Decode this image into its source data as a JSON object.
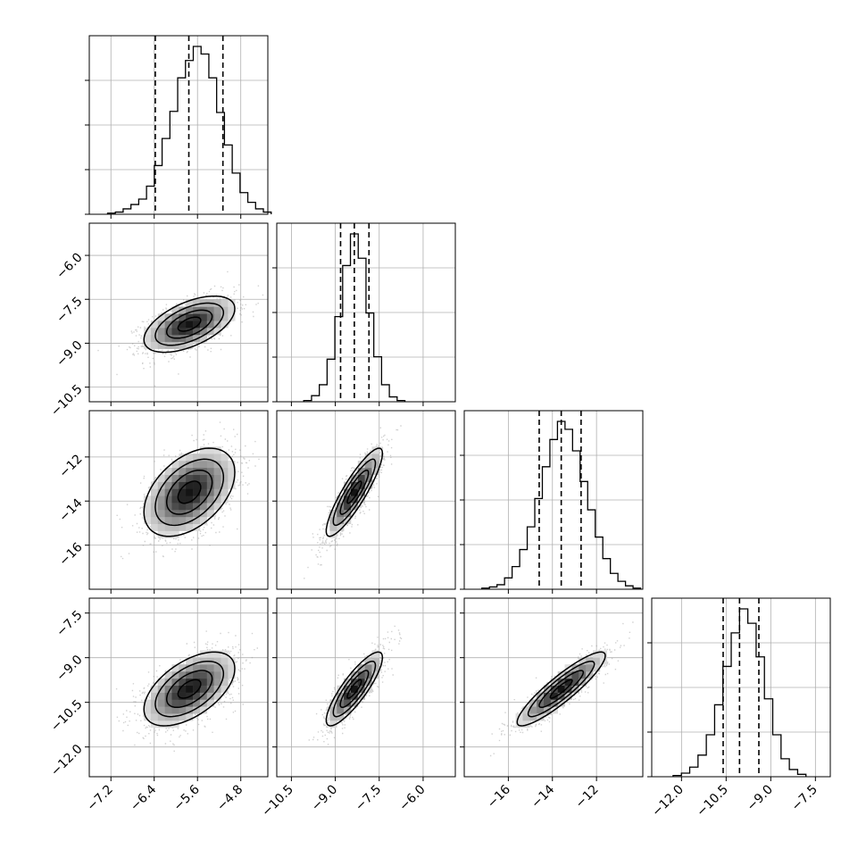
{
  "chart_data": {
    "type": "corner",
    "parameters": [
      {
        "range": [
          -7.6,
          -4.3
        ],
        "mean": -5.75,
        "sd": 0.42,
        "quantiles": [
          -6.38,
          -5.76,
          -5.13
        ],
        "ticks": [
          {
            "v": -7.2,
            "label": "−7.2"
          },
          {
            "v": -6.4,
            "label": "−6.4"
          },
          {
            "v": -5.6,
            "label": "−5.6"
          },
          {
            "v": -4.8,
            "label": "−4.8"
          }
        ]
      },
      {
        "range": [
          -11.0,
          -4.9
        ],
        "mean": -8.35,
        "sd": 0.48,
        "quantiles": [
          -8.82,
          -8.35,
          -7.85
        ],
        "ticks": [
          {
            "v": -10.5,
            "label": "−10.5"
          },
          {
            "v": -9.0,
            "label": "−9.0"
          },
          {
            "v": -7.5,
            "label": "−7.5"
          },
          {
            "v": -6.0,
            "label": "−6.0"
          }
        ]
      },
      {
        "range": [
          -18.0,
          -9.9
        ],
        "mean": -13.6,
        "sd": 1.0,
        "quantiles": [
          -14.6,
          -13.6,
          -12.7
        ],
        "ticks": [
          {
            "v": -16,
            "label": "−16"
          },
          {
            "v": -14,
            "label": "−14"
          },
          {
            "v": -12,
            "label": "−12"
          }
        ]
      },
      {
        "range": [
          -13.0,
          -7.0
        ],
        "mean": -10.05,
        "sd": 0.62,
        "quantiles": [
          -10.6,
          -10.05,
          -9.4
        ],
        "ticks": [
          {
            "v": -12.0,
            "label": "−12.0"
          },
          {
            "v": -10.5,
            "label": "−10.5"
          },
          {
            "v": -9.0,
            "label": "−9.0"
          },
          {
            "v": -7.5,
            "label": "−7.5"
          }
        ]
      }
    ],
    "histograms": [
      [
        1,
        2,
        5,
        9,
        14,
        26,
        45,
        70,
        95,
        126,
        142,
        155,
        148,
        126,
        94,
        64,
        38,
        20,
        11,
        5,
        2
      ],
      [
        1,
        5,
        14,
        35,
        70,
        112,
        138,
        118,
        73,
        37,
        14,
        4,
        1
      ],
      [
        1,
        2,
        4,
        10,
        20,
        35,
        55,
        80,
        108,
        132,
        148,
        141,
        122,
        95,
        70,
        46,
        27,
        14,
        7,
        3,
        1
      ],
      [
        1,
        3,
        8,
        18,
        35,
        60,
        92,
        120,
        140,
        128,
        100,
        65,
        35,
        15,
        6,
        2
      ]
    ],
    "correlations": [
      {
        "row": 1,
        "col": 0,
        "rho": 0.55
      },
      {
        "row": 2,
        "col": 0,
        "rho": 0.45
      },
      {
        "row": 2,
        "col": 1,
        "rho": 0.88
      },
      {
        "row": 3,
        "col": 0,
        "rho": 0.55
      },
      {
        "row": 3,
        "col": 1,
        "rho": 0.85
      },
      {
        "row": 3,
        "col": 2,
        "rho": 0.9
      }
    ],
    "contour_levels_sigma": [
      0.5,
      1.0,
      1.5,
      2.0
    ],
    "grid": true,
    "title": "",
    "colors": {
      "ink": "#000000",
      "grid": "#b0b0b0",
      "background": "#ffffff"
    }
  }
}
